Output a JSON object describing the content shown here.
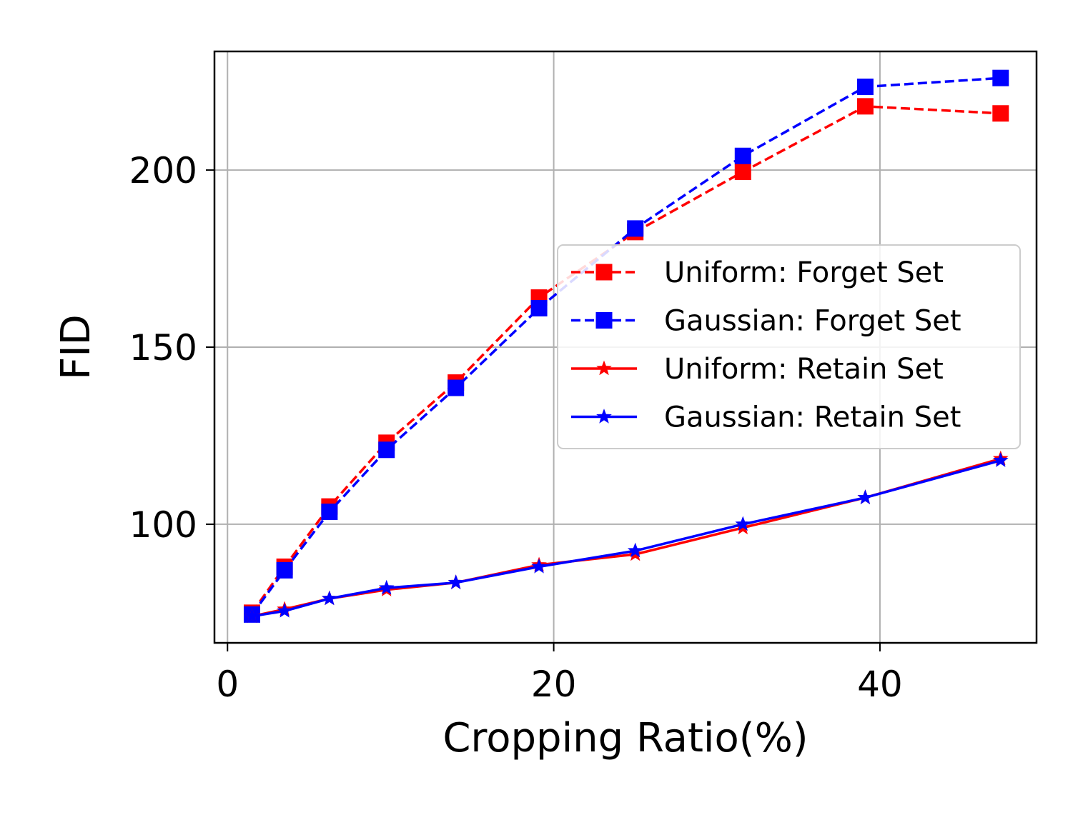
{
  "chart_data": {
    "type": "line",
    "xlabel": "Cropping Ratio(%)",
    "ylabel": "FID",
    "xlim": [
      -0.8,
      49.6
    ],
    "ylim": [
      66.5,
      233.5
    ],
    "xticks": [
      0,
      20,
      40
    ],
    "yticks": [
      100,
      150,
      200
    ],
    "grid": true,
    "legend_position": "center-right",
    "x": [
      1.5,
      3.5,
      6.25,
      9.75,
      14,
      19.1,
      25,
      31.6,
      39.1,
      47.4
    ],
    "series": [
      {
        "name": "Uniform: Forget Set",
        "color": "#ff0000",
        "linestyle": "dashed",
        "marker": "square",
        "values": [
          75,
          88,
          105,
          123,
          140,
          164,
          182.5,
          199.5,
          218,
          216
        ]
      },
      {
        "name": "Gaussian: Forget Set",
        "color": "#0000ff",
        "linestyle": "dashed",
        "marker": "square",
        "values": [
          74.5,
          87,
          103.5,
          121,
          138.5,
          161,
          183.5,
          204,
          223.5,
          226
        ]
      },
      {
        "name": "Uniform: Retain Set",
        "color": "#ff0000",
        "linestyle": "solid",
        "marker": "star",
        "values": [
          74,
          76,
          79,
          81.5,
          83.5,
          88.5,
          91.5,
          99,
          107.5,
          118.5
        ]
      },
      {
        "name": "Gaussian: Retain Set",
        "color": "#0000ff",
        "linestyle": "solid",
        "marker": "star",
        "values": [
          74,
          75.5,
          79,
          82,
          83.5,
          88,
          92.5,
          100,
          107.5,
          118
        ]
      }
    ]
  }
}
